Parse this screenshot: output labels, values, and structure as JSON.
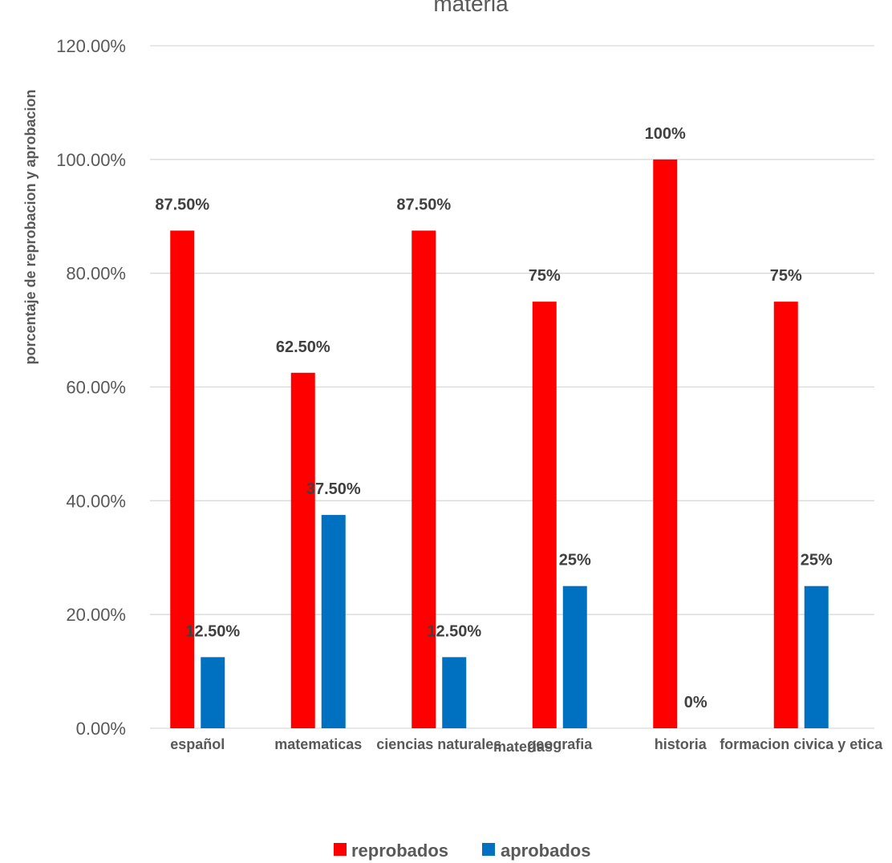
{
  "chart_data": {
    "type": "bar",
    "title": "materia",
    "xlabel": "materias",
    "ylabel": "porcentaje de reprobacion y aprobacion",
    "ylim": [
      0,
      120
    ],
    "yticks": [
      "0.00%",
      "20.00%",
      "40.00%",
      "60.00%",
      "80.00%",
      "100.00%",
      "120.00%"
    ],
    "ytick_values": [
      0,
      20,
      40,
      60,
      80,
      100,
      120
    ],
    "categories": [
      "español",
      "matematicas",
      "ciencias naturales",
      "geografia",
      "historia",
      "formacion civica y etica"
    ],
    "series": [
      {
        "name": "reprobados",
        "color": "#ff0000",
        "values": [
          87.5,
          62.5,
          87.5,
          75,
          100,
          75
        ],
        "labels": [
          "87.50%",
          "62.50%",
          "87.50%",
          "75%",
          "100%",
          "75%"
        ]
      },
      {
        "name": "aprobados",
        "color": "#0070c0",
        "values": [
          12.5,
          37.5,
          12.5,
          25,
          0,
          25
        ],
        "labels": [
          "12.50%",
          "37.50%",
          "12.50%",
          "25%",
          "0%",
          "25%"
        ]
      }
    ],
    "grid": true,
    "legend": "bottom"
  }
}
